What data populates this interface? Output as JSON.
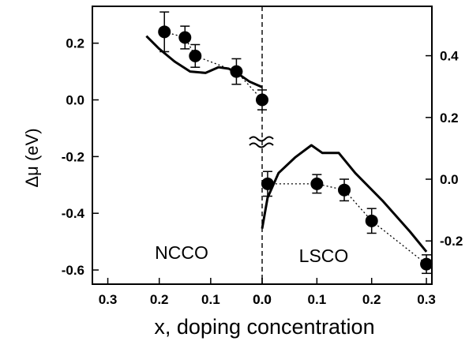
{
  "chart_data": {
    "type": "scatter",
    "xlabel": "x, doping concentration",
    "ylabel": "Δμ (eV)",
    "left_axis": {
      "ylim": [
        -0.65,
        0.33
      ],
      "ticks": [
        0.2,
        0.0,
        -0.2,
        -0.4,
        -0.6
      ],
      "tick_labels": [
        "0.2",
        "0.0",
        "-0.2",
        "-0.4",
        "-0.6"
      ]
    },
    "right_axis": {
      "ylim": [
        -0.34,
        0.56
      ],
      "ticks": [
        0.4,
        0.2,
        0.0,
        -0.2
      ],
      "tick_labels": [
        "0.4",
        "0.2",
        "0.0",
        "-0.2"
      ]
    },
    "regions": [
      {
        "label": "NCCO",
        "x_direction": "reversed",
        "xlim": [
          0.0,
          0.33
        ],
        "axis": "left",
        "x_ticks": [
          0.3,
          0.2,
          0.1,
          0.0
        ],
        "x_tick_labels": [
          "0.3",
          "0.2",
          "0.1",
          "0.0"
        ],
        "points": [
          {
            "x": 0.19,
            "y": 0.24,
            "err": 0.07
          },
          {
            "x": 0.15,
            "y": 0.22,
            "err": 0.04
          },
          {
            "x": 0.13,
            "y": 0.155,
            "err": 0.04
          },
          {
            "x": 0.05,
            "y": 0.1,
            "err": 0.045
          },
          {
            "x": 0.0,
            "y": 0.0,
            "err": 0.035
          }
        ],
        "curve": {
          "x": [
            0.225,
            0.2,
            0.17,
            0.14,
            0.11,
            0.085,
            0.065,
            0.045,
            0.025,
            0.0
          ],
          "y": [
            0.225,
            0.18,
            0.135,
            0.1,
            0.095,
            0.115,
            0.11,
            0.09,
            0.065,
            0.045
          ]
        }
      },
      {
        "label": "LSCO",
        "x_direction": "normal",
        "xlim": [
          0.0,
          0.31
        ],
        "axis": "right",
        "x_ticks": [
          0.0,
          0.1,
          0.2,
          0.3
        ],
        "x_tick_labels": [
          "0.0",
          "0.1",
          "0.2",
          "0.3"
        ],
        "points": [
          {
            "x": 0.01,
            "y": -0.015,
            "err": 0.04
          },
          {
            "x": 0.1,
            "y": -0.015,
            "err": 0.03
          },
          {
            "x": 0.15,
            "y": -0.035,
            "err": 0.035
          },
          {
            "x": 0.2,
            "y": -0.135,
            "err": 0.04
          },
          {
            "x": 0.3,
            "y": -0.275,
            "err": 0.03
          }
        ],
        "curve": {
          "x": [
            0.0,
            0.01,
            0.03,
            0.06,
            0.09,
            0.11,
            0.14,
            0.17,
            0.22,
            0.27,
            0.3
          ],
          "y": [
            -0.16,
            -0.06,
            0.02,
            0.07,
            0.11,
            0.085,
            0.085,
            0.02,
            -0.07,
            -0.17,
            -0.235
          ]
        }
      }
    ]
  }
}
